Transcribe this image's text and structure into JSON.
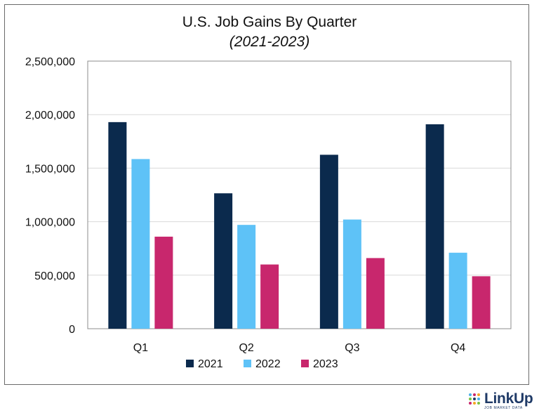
{
  "chart_data": {
    "type": "bar",
    "title": "U.S. Job Gains By Quarter",
    "subtitle": "(2021-2023)",
    "categories": [
      "Q1",
      "Q2",
      "Q3",
      "Q4"
    ],
    "series": [
      {
        "name": "2021",
        "color": "#0b2a4d",
        "values": [
          1930000,
          1265000,
          1625000,
          1910000
        ]
      },
      {
        "name": "2022",
        "color": "#5ec2f7",
        "values": [
          1585000,
          970000,
          1020000,
          710000
        ]
      },
      {
        "name": "2023",
        "color": "#c8276d",
        "values": [
          860000,
          600000,
          660000,
          490000
        ]
      }
    ],
    "ylim": [
      0,
      2500000
    ],
    "yticks": [
      0,
      500000,
      1000000,
      1500000,
      2000000,
      2500000
    ],
    "ytick_labels": [
      "0",
      "500,000",
      "1,000,000",
      "1,500,000",
      "2,000,000",
      "2,500,000"
    ],
    "xlabel": "",
    "ylabel": "",
    "grid": true,
    "legend_position": "bottom"
  },
  "logo": {
    "name": "LinkUp",
    "tagline": "JOB MARKET DATA",
    "colors": [
      "#1f3a67",
      "#4ab3e8",
      "#c8276d",
      "#f5a623",
      "#7ac143"
    ]
  }
}
